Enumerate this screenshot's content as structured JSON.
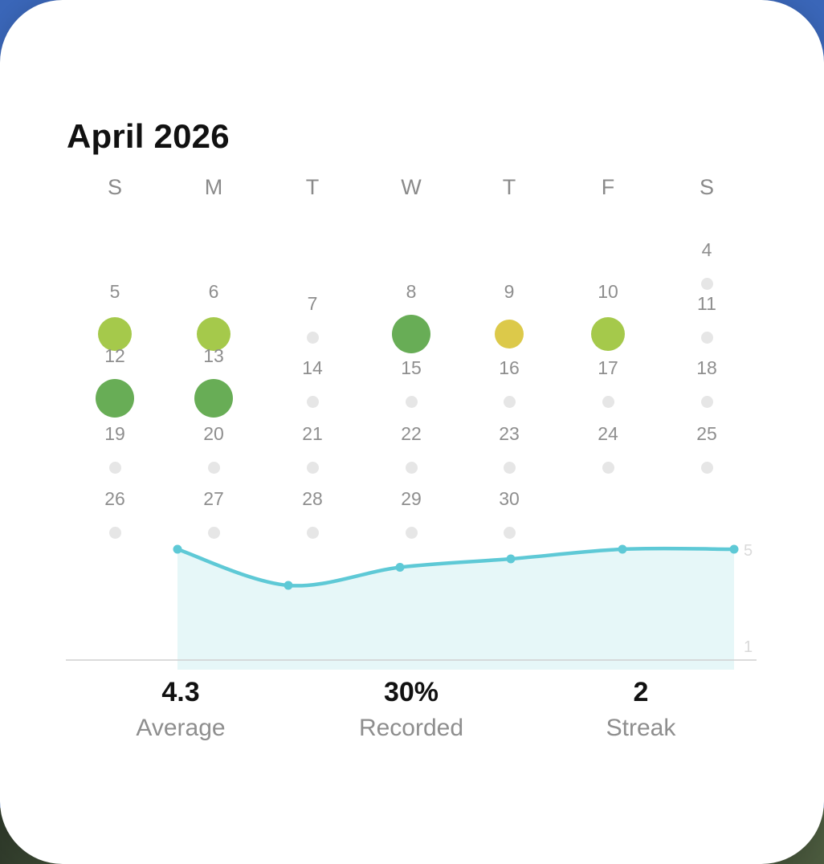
{
  "calendar": {
    "title": "April 2026",
    "weekdays": [
      "S",
      "M",
      "T",
      "W",
      "T",
      "F",
      "S"
    ],
    "days": [
      {
        "day": "4",
        "mood": "none"
      },
      {
        "day": "5",
        "mood": "light-green"
      },
      {
        "day": "6",
        "mood": "light-green"
      },
      {
        "day": "7",
        "mood": "none"
      },
      {
        "day": "8",
        "mood": "green"
      },
      {
        "day": "9",
        "mood": "yellow"
      },
      {
        "day": "10",
        "mood": "light-green"
      },
      {
        "day": "11",
        "mood": "none"
      },
      {
        "day": "12",
        "mood": "green"
      },
      {
        "day": "13",
        "mood": "green"
      },
      {
        "day": "14",
        "mood": "none"
      },
      {
        "day": "15",
        "mood": "none"
      },
      {
        "day": "16",
        "mood": "none"
      },
      {
        "day": "17",
        "mood": "none"
      },
      {
        "day": "18",
        "mood": "none"
      },
      {
        "day": "19",
        "mood": "none"
      },
      {
        "day": "20",
        "mood": "none"
      },
      {
        "day": "21",
        "mood": "none"
      },
      {
        "day": "22",
        "mood": "none"
      },
      {
        "day": "23",
        "mood": "none"
      },
      {
        "day": "24",
        "mood": "none"
      },
      {
        "day": "25",
        "mood": "none"
      },
      {
        "day": "26",
        "mood": "none"
      },
      {
        "day": "27",
        "mood": "none"
      },
      {
        "day": "28",
        "mood": "none"
      },
      {
        "day": "29",
        "mood": "none"
      },
      {
        "day": "30",
        "mood": "none"
      }
    ],
    "mood_colors": {
      "green": "#68ad56",
      "light-green": "#a5c94b",
      "yellow": "#dcc94a",
      "none": "#e6e6e6"
    }
  },
  "chart_data": {
    "type": "area",
    "x": [
      1,
      2,
      3,
      4,
      5,
      6
    ],
    "values": [
      5,
      3.5,
      4.25,
      4.6,
      5,
      5
    ],
    "ylim": [
      1,
      5
    ],
    "ytick_labels": [
      "5",
      "1"
    ],
    "line_color": "#5ec9d6",
    "fill_color": "#e6f7f8"
  },
  "stats": {
    "average_value": "4.3",
    "average_label": "Average",
    "recorded_value": "30%",
    "recorded_label": "Recorded",
    "streak_value": "2",
    "streak_label": "Streak"
  }
}
